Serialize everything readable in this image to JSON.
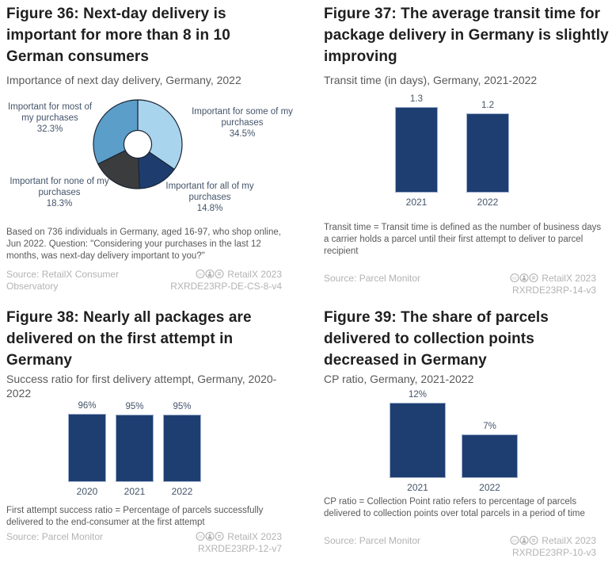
{
  "colors": {
    "title": "#1f1f1f",
    "subtitle": "#595959",
    "chart_label": "#44546a",
    "footnote": "#595959",
    "source": "#b3b3b3",
    "bar_navy": "#1e3e72",
    "donut_light_blue": "#a9d4ee",
    "donut_navy": "#1e3d6e",
    "donut_charcoal": "#3a3c3e",
    "donut_medium_blue": "#5b9ec9"
  },
  "chart_data": [
    {
      "type": "pie",
      "donut": true,
      "title": "Figure 36: Next-day delivery is important for more than 8 in 10 German consumers",
      "subtitle": "Importance of next day delivery, Germany, 2022",
      "start_angle": "12 o'clock, clockwise",
      "slices": [
        {
          "label": "Important for some of my purchases",
          "pct_label": "34.5%",
          "value": 34.5,
          "color": "#a9d4ee"
        },
        {
          "label": "Important for all of my purchases",
          "pct_label": "14.8%",
          "value": 14.8,
          "color": "#1e3d6e"
        },
        {
          "label": "Important for none of my purchases",
          "pct_label": "18.3%",
          "value": 18.3,
          "color": "#3a3c3e"
        },
        {
          "label": "Important for most of my purchases",
          "pct_label": "32.3%",
          "value": 32.3,
          "color": "#5b9ec9"
        }
      ]
    },
    {
      "type": "bar",
      "title": "Figure 37: The average transit time for package delivery in Germany is slightly improving",
      "subtitle": "Transit time (in days), Germany, 2021-2022",
      "categories": [
        "2021",
        "2022"
      ],
      "values": [
        1.3,
        1.2
      ],
      "value_labels": [
        "1.3",
        "1.2"
      ],
      "ylim": [
        0,
        1.3
      ],
      "bar_color": "#1e3e72",
      "grid": false
    },
    {
      "type": "bar",
      "title": "Figure 38: Nearly all packages are delivered on the first attempt in Germany",
      "subtitle": "Success ratio for first delivery attempt, Germany, 2020-2022",
      "categories": [
        "2020",
        "2021",
        "2022"
      ],
      "values": [
        96,
        95,
        95
      ],
      "value_labels": [
        "96%",
        "95%",
        "95%"
      ],
      "ylim": [
        0,
        96
      ],
      "bar_color": "#1e3e72",
      "grid": false
    },
    {
      "type": "bar",
      "title": "Figure 39: The share of parcels delivered to collection points decreased in Germany",
      "subtitle": "CP ratio, Germany, 2021-2022",
      "categories": [
        "2021",
        "2022"
      ],
      "values": [
        12,
        7
      ],
      "value_labels": [
        "12%",
        "7%"
      ],
      "ylim": [
        0,
        12
      ],
      "bar_color": "#1e3e72",
      "grid": false
    }
  ],
  "figures": [
    {
      "footnote": "Based on 736 individuals in Germany, aged 16-97, who shop online, Jun 2022. Question: \"Considering your purchases in the last 12 months, was next-day delivery important to you?\"",
      "source": "Source: RetailX Consumer Observatory",
      "license_icons": "cc-by-nd",
      "license": "RetailX 2023",
      "code": "RXRDE23RP-DE-CS-8-v4"
    },
    {
      "footnote": "Transit time = Transit time is defined as the number of business days a carrier holds a parcel until their first attempt to deliver to parcel recipient",
      "source": "Source: Parcel Monitor",
      "license_icons": "cc-by-nd",
      "license": "RetailX 2023",
      "code": "RXRDE23RP-14-v3"
    },
    {
      "footnote": "First attempt success ratio = Percentage of parcels successfully delivered to the end-consumer at the first attempt",
      "source": "Source: Parcel Monitor",
      "license_icons": "cc-by-nd",
      "license": "RetailX 2023",
      "code": "RXRDE23RP-12-v7"
    },
    {
      "footnote": "CP ratio = Collection Point ratio refers to percentage of parcels delivered to collection points over total parcels in a period of time",
      "source": "Source: Parcel Monitor",
      "license_icons": "cc-by-nd",
      "license": "RetailX 2023",
      "code": "RXRDE23RP-10-v3"
    }
  ]
}
